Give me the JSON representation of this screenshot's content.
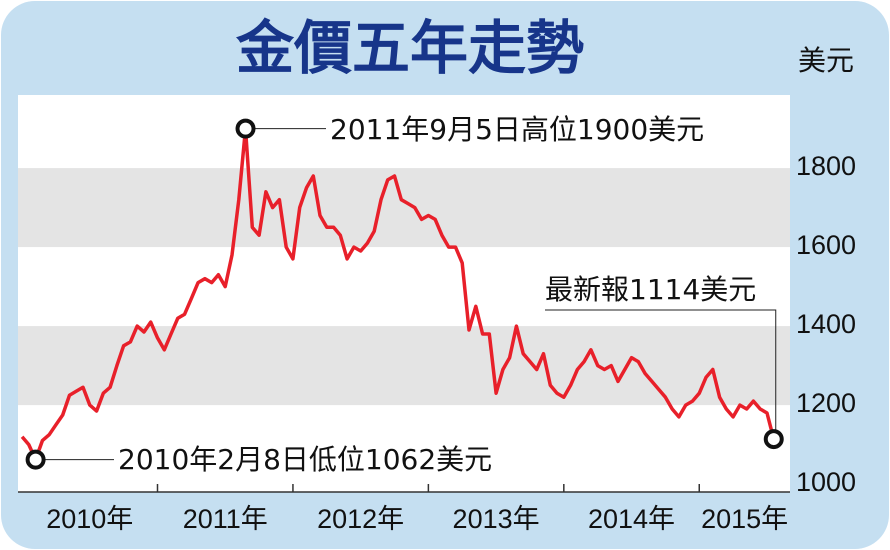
{
  "chart_data": {
    "type": "line",
    "title": "金價五年走勢",
    "y_label": "美元",
    "x": [
      2010.0,
      2010.05,
      2010.1,
      2010.15,
      2010.2,
      2010.25,
      2010.3,
      2010.35,
      2010.4,
      2010.45,
      2010.5,
      2010.55,
      2010.6,
      2010.65,
      2010.7,
      2010.75,
      2010.8,
      2010.85,
      2010.9,
      2010.95,
      2011.0,
      2011.05,
      2011.1,
      2011.15,
      2011.2,
      2011.25,
      2011.3,
      2011.35,
      2011.4,
      2011.45,
      2011.5,
      2011.55,
      2011.6,
      2011.65,
      2011.7,
      2011.75,
      2011.8,
      2011.85,
      2011.9,
      2011.95,
      2012.0,
      2012.05,
      2012.1,
      2012.15,
      2012.2,
      2012.25,
      2012.3,
      2012.35,
      2012.4,
      2012.45,
      2012.5,
      2012.55,
      2012.6,
      2012.65,
      2012.7,
      2012.75,
      2012.8,
      2012.85,
      2012.9,
      2012.95,
      2013.0,
      2013.05,
      2013.1,
      2013.15,
      2013.2,
      2013.25,
      2013.3,
      2013.35,
      2013.4,
      2013.45,
      2013.5,
      2013.55,
      2013.6,
      2013.65,
      2013.7,
      2013.75,
      2013.8,
      2013.85,
      2013.9,
      2013.95,
      2014.0,
      2014.05,
      2014.1,
      2014.15,
      2014.2,
      2014.25,
      2014.3,
      2014.35,
      2014.4,
      2014.45,
      2014.5,
      2014.55,
      2014.6,
      2014.65,
      2014.7,
      2014.75,
      2014.8,
      2014.85,
      2014.9,
      2014.95,
      2015.0,
      2015.05,
      2015.1,
      2015.15,
      2015.2,
      2015.25,
      2015.3,
      2015.35,
      2015.4,
      2015.45,
      2015.5,
      2015.55
    ],
    "series": [
      {
        "color": "#e8202a",
        "values": [
          1120,
          1100,
          1062,
          1110,
          1125,
          1150,
          1175,
          1225,
          1235,
          1245,
          1200,
          1185,
          1230,
          1245,
          1300,
          1350,
          1360,
          1400,
          1385,
          1410,
          1370,
          1340,
          1380,
          1420,
          1430,
          1470,
          1510,
          1520,
          1510,
          1530,
          1500,
          1580,
          1720,
          1900,
          1650,
          1630,
          1740,
          1700,
          1720,
          1600,
          1570,
          1700,
          1750,
          1780,
          1680,
          1650,
          1650,
          1630,
          1570,
          1600,
          1590,
          1610,
          1640,
          1720,
          1770,
          1780,
          1720,
          1710,
          1700,
          1670,
          1680,
          1670,
          1630,
          1600,
          1600,
          1560,
          1390,
          1450,
          1380,
          1380,
          1230,
          1290,
          1320,
          1400,
          1330,
          1310,
          1290,
          1330,
          1250,
          1230,
          1220,
          1250,
          1290,
          1310,
          1340,
          1300,
          1290,
          1300,
          1260,
          1290,
          1320,
          1310,
          1280,
          1260,
          1240,
          1220,
          1190,
          1170,
          1200,
          1210,
          1230,
          1270,
          1290,
          1220,
          1190,
          1170,
          1200,
          1190,
          1210,
          1190,
          1180,
          1114
        ]
      }
    ],
    "xlim": [
      2009.97,
      2015.67
    ],
    "xticks": [
      {
        "value": 2010,
        "label": "2010年"
      },
      {
        "value": 2011,
        "label": "2011年"
      },
      {
        "value": 2012,
        "label": "2012年"
      },
      {
        "value": 2013,
        "label": "2013年"
      },
      {
        "value": 2014,
        "label": "2014年"
      },
      {
        "value": 2015,
        "label": "2015年"
      }
    ],
    "ylim": [
      980,
      1985
    ],
    "yticks": [
      1000,
      1200,
      1400,
      1600,
      1800
    ],
    "annotations": [
      {
        "text": "2011年9月5日高位1900美元",
        "x": 2011.65,
        "y": 1900
      },
      {
        "text": "2010年2月8日低位1062美元",
        "x": 2010.1,
        "y": 1062
      },
      {
        "text": "最新報1114美元",
        "x": 2015.55,
        "y": 1114
      }
    ]
  }
}
